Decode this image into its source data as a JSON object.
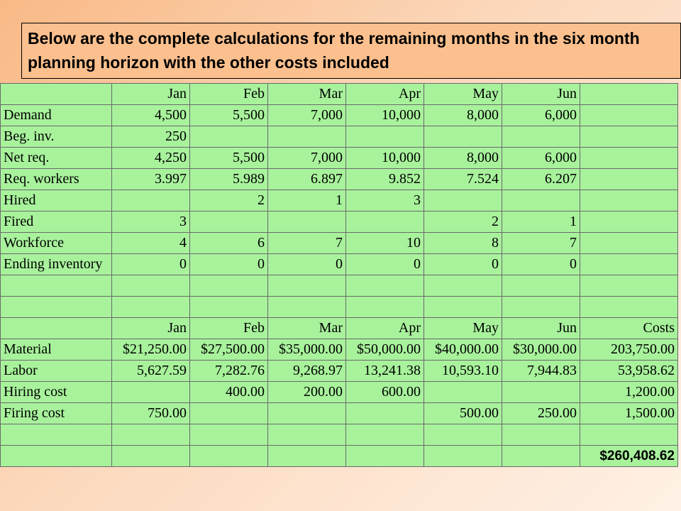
{
  "header": {
    "title": "Below are the complete calculations for the remaining months in the six month planning horizon with the other costs included"
  },
  "table": {
    "rows": [
      [
        null,
        "Jan",
        "Feb",
        "Mar",
        "Apr",
        "May",
        "Jun",
        null
      ],
      [
        "Demand",
        "4,500",
        "5,500",
        "7,000",
        "10,000",
        "8,000",
        "6,000",
        null
      ],
      [
        "Beg. inv.",
        "250",
        null,
        null,
        null,
        null,
        null,
        null
      ],
      [
        "Net req.",
        "4,250",
        "5,500",
        "7,000",
        "10,000",
        "8,000",
        "6,000",
        null
      ],
      [
        "Req. workers",
        "3.997",
        "5.989",
        "6.897",
        "9.852",
        "7.524",
        "6.207",
        null
      ],
      [
        "Hired",
        null,
        "2",
        "1",
        "3",
        null,
        null,
        null
      ],
      [
        "Fired",
        "3",
        null,
        null,
        null,
        "2",
        "1",
        null
      ],
      [
        "Workforce",
        "4",
        "6",
        "7",
        "10",
        "8",
        "7",
        null
      ],
      [
        "Ending inventory",
        "0",
        "0",
        "0",
        "0",
        "0",
        "0",
        null
      ],
      [
        null,
        null,
        null,
        null,
        null,
        null,
        null,
        null
      ],
      [
        null,
        null,
        null,
        null,
        null,
        null,
        null,
        null
      ],
      [
        null,
        "Jan",
        "Feb",
        "Mar",
        "Apr",
        "May",
        "Jun",
        "Costs"
      ],
      [
        "Material",
        "$21,250.00",
        "$27,500.00",
        "$35,000.00",
        "$50,000.00",
        "$40,000.00",
        "$30,000.00",
        "203,750.00"
      ],
      [
        "Labor",
        "5,627.59",
        "7,282.76",
        "9,268.97",
        "13,241.38",
        "10,593.10",
        "7,944.83",
        "53,958.62"
      ],
      [
        "Hiring cost",
        null,
        "400.00",
        "200.00",
        "600.00",
        null,
        null,
        "1,200.00"
      ],
      [
        "Firing cost",
        "750.00",
        null,
        null,
        null,
        "500.00",
        "250.00",
        "1,500.00"
      ],
      [
        null,
        null,
        null,
        null,
        null,
        null,
        null,
        null
      ],
      [
        null,
        null,
        null,
        null,
        null,
        null,
        null,
        "$260,408.62"
      ]
    ]
  }
}
